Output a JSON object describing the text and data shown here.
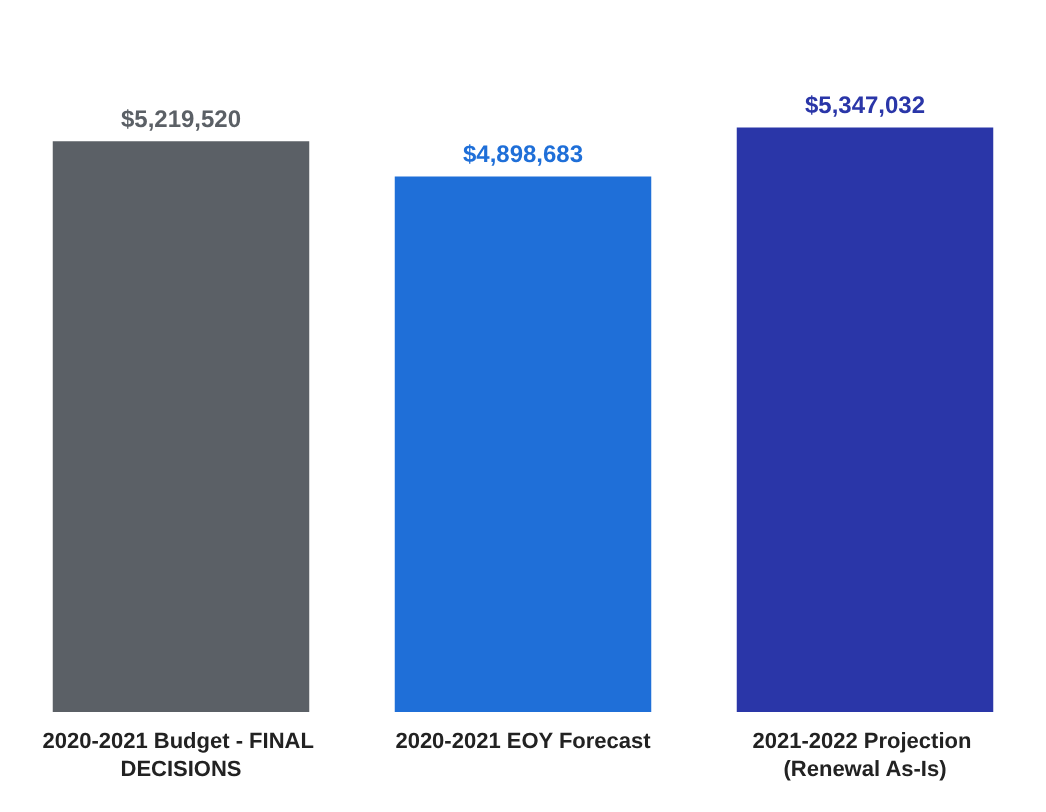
{
  "chart_data": {
    "type": "bar",
    "categories": [
      "2020-2021 Budget - FINAL DECISIONS",
      "2020-2021 EOY Forecast",
      "2021-2022 Projection (Renewal As-Is)"
    ],
    "values": [
      5219520,
      4898683,
      5347032
    ],
    "colors": [
      "#5b6066",
      "#1f6fd8",
      "#2a36a8"
    ],
    "value_labels": [
      "$5,219,520",
      "$4,898,683",
      "$5,347,032"
    ]
  }
}
